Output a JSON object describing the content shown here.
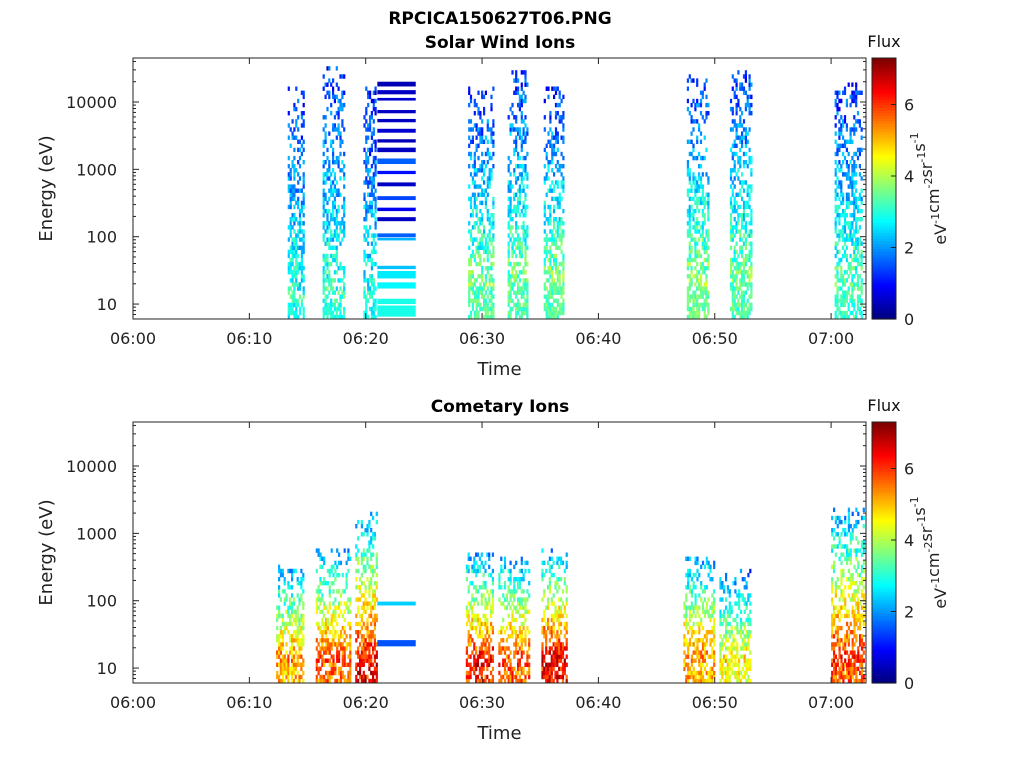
{
  "figure": {
    "title": "RPCICA150627T06.PNG"
  },
  "colorbar": {
    "title": "Flux",
    "unit_prefix": "eV",
    "unit_parts": [
      {
        "t": "eV",
        "sup": "-1"
      },
      {
        "t": "cm",
        "sup": "-2"
      },
      {
        "t": "sr",
        "sup": "-1"
      },
      {
        "t": "s",
        "sup": "-1"
      }
    ],
    "ticks": [
      0,
      2,
      4,
      6
    ],
    "range": [
      0,
      7.3
    ],
    "colormap": "jet"
  },
  "chart_data": [
    {
      "type": "heatmap",
      "title": "Solar Wind Ions",
      "xlabel": "Time",
      "ylabel": "Energy (eV)",
      "x_ticks": [
        "06:00",
        "06:10",
        "06:20",
        "06:30",
        "06:40",
        "06:50",
        "07:00"
      ],
      "x_tick_minutes": [
        0,
        10,
        20,
        30,
        40,
        50,
        60
      ],
      "xlim_minutes": [
        0,
        63
      ],
      "y_scale": "log",
      "y_ticks": [
        10,
        100,
        1000,
        10000
      ],
      "ylim": [
        6,
        45000
      ],
      "z_label": "Flux",
      "zlim": [
        0,
        7.3
      ],
      "bursts": [
        {
          "start": 13.3,
          "end": 14.6,
          "emax": 16000,
          "emin": 6,
          "peak_e": 11,
          "peak_z": 3.0,
          "hi_z": 1.2
        },
        {
          "start": 16.3,
          "end": 18.2,
          "emax": 34000,
          "emin": 6,
          "peak_e": 11,
          "peak_z": 3.2,
          "hi_z": 1.2
        },
        {
          "start": 19.8,
          "end": 20.9,
          "emax": 18000,
          "emin": 6,
          "peak_e": 11,
          "peak_z": 3.0,
          "hi_z": 1.0
        },
        {
          "start": 28.8,
          "end": 30.9,
          "emax": 16000,
          "emin": 6,
          "peak_e": 18,
          "peak_z": 3.6,
          "hi_z": 1.2
        },
        {
          "start": 32.2,
          "end": 33.9,
          "emax": 30000,
          "emin": 6,
          "peak_e": 20,
          "peak_z": 3.6,
          "hi_z": 1.2
        },
        {
          "start": 35.3,
          "end": 37.0,
          "emax": 16000,
          "emin": 6,
          "peak_e": 20,
          "peak_z": 3.7,
          "hi_z": 1.2
        },
        {
          "start": 47.6,
          "end": 49.5,
          "emax": 25000,
          "emin": 6,
          "peak_e": 18,
          "peak_z": 3.8,
          "hi_z": 1.2
        },
        {
          "start": 51.3,
          "end": 53.2,
          "emax": 30000,
          "emin": 6,
          "peak_e": 20,
          "peak_z": 3.6,
          "hi_z": 1.2
        },
        {
          "start": 60.3,
          "end": 62.6,
          "emax": 20000,
          "emin": 6,
          "peak_e": 15,
          "peak_z": 3.4,
          "hi_z": 1.2
        }
      ],
      "bands": [
        {
          "start": 21.0,
          "end": 24.3,
          "e_low": 17000,
          "e_high": 20000,
          "z": 0.4
        },
        {
          "start": 21.0,
          "end": 24.3,
          "e_low": 13000,
          "e_high": 15000,
          "z": 0.5
        },
        {
          "start": 21.0,
          "end": 24.3,
          "e_low": 10500,
          "e_high": 11500,
          "z": 0.6
        },
        {
          "start": 21.0,
          "end": 24.3,
          "e_low": 6800,
          "e_high": 7600,
          "z": 0.5
        },
        {
          "start": 21.0,
          "end": 24.3,
          "e_low": 5000,
          "e_high": 5600,
          "z": 0.5
        },
        {
          "start": 21.0,
          "end": 24.3,
          "e_low": 3500,
          "e_high": 4000,
          "z": 0.6
        },
        {
          "start": 21.0,
          "end": 24.3,
          "e_low": 2500,
          "e_high": 2800,
          "z": 0.4
        },
        {
          "start": 21.0,
          "end": 24.3,
          "e_low": 1800,
          "e_high": 2100,
          "z": 0.5
        },
        {
          "start": 21.0,
          "end": 24.3,
          "e_low": 1200,
          "e_high": 1450,
          "z": 1.6
        },
        {
          "start": 21.0,
          "end": 24.3,
          "e_low": 850,
          "e_high": 950,
          "z": 1.0
        },
        {
          "start": 21.0,
          "end": 24.3,
          "e_low": 560,
          "e_high": 640,
          "z": 0.5
        },
        {
          "start": 21.0,
          "end": 24.3,
          "e_low": 350,
          "e_high": 400,
          "z": 1.4
        },
        {
          "start": 21.0,
          "end": 24.3,
          "e_low": 240,
          "e_high": 270,
          "z": 0.8
        },
        {
          "start": 21.0,
          "end": 24.3,
          "e_low": 170,
          "e_high": 195,
          "z": 0.5
        },
        {
          "start": 21.0,
          "end": 24.3,
          "e_low": 98,
          "e_high": 112,
          "z": 1.6
        },
        {
          "start": 21.0,
          "end": 24.3,
          "e_low": 88,
          "e_high": 96,
          "z": 2.2
        },
        {
          "start": 21.0,
          "end": 24.3,
          "e_low": 33,
          "e_high": 37,
          "z": 2.3
        },
        {
          "start": 21.0,
          "end": 24.3,
          "e_low": 24,
          "e_high": 31,
          "z": 2.6
        },
        {
          "start": 21.0,
          "end": 24.3,
          "e_low": 17,
          "e_high": 21,
          "z": 2.7
        },
        {
          "start": 21.0,
          "end": 24.3,
          "e_low": 10,
          "e_high": 12,
          "z": 2.9
        },
        {
          "start": 21.0,
          "end": 24.3,
          "e_low": 6.5,
          "e_high": 9.5,
          "z": 2.9
        }
      ]
    },
    {
      "type": "heatmap",
      "title": "Cometary Ions",
      "xlabel": "Time",
      "ylabel": "Energy (eV)",
      "x_ticks": [
        "06:00",
        "06:10",
        "06:20",
        "06:30",
        "06:40",
        "06:50",
        "07:00"
      ],
      "x_tick_minutes": [
        0,
        10,
        20,
        30,
        40,
        50,
        60
      ],
      "xlim_minutes": [
        0,
        63
      ],
      "y_scale": "log",
      "y_ticks": [
        10,
        100,
        1000,
        10000
      ],
      "ylim": [
        6,
        45000
      ],
      "z_label": "Flux",
      "zlim": [
        0,
        7.3
      ],
      "bursts": [
        {
          "start": 12.3,
          "end": 14.6,
          "emax": 350,
          "emin": 6,
          "peak_e": 12,
          "peak_z": 5.5,
          "hi_z": 2.0
        },
        {
          "start": 15.7,
          "end": 18.6,
          "emax": 600,
          "emin": 6,
          "peak_e": 12,
          "peak_z": 6.0,
          "hi_z": 2.0
        },
        {
          "start": 19.1,
          "end": 20.9,
          "emax": 2000,
          "emin": 6,
          "peak_e": 8,
          "peak_z": 6.8,
          "hi_z": 2.0
        },
        {
          "start": 28.6,
          "end": 30.9,
          "emax": 500,
          "emin": 6,
          "peak_e": 10,
          "peak_z": 6.6,
          "hi_z": 2.0
        },
        {
          "start": 31.4,
          "end": 34.0,
          "emax": 450,
          "emin": 6,
          "peak_e": 10,
          "peak_z": 6.2,
          "hi_z": 2.0
        },
        {
          "start": 35.1,
          "end": 37.3,
          "emax": 600,
          "emin": 6,
          "peak_e": 10,
          "peak_z": 6.9,
          "hi_z": 2.0
        },
        {
          "start": 47.3,
          "end": 49.9,
          "emax": 450,
          "emin": 6,
          "peak_e": 12,
          "peak_z": 5.6,
          "hi_z": 2.0
        },
        {
          "start": 50.4,
          "end": 53.1,
          "emax": 300,
          "emin": 6,
          "peak_e": 12,
          "peak_z": 4.8,
          "hi_z": 1.6
        },
        {
          "start": 60.0,
          "end": 62.8,
          "emax": 2500,
          "emin": 6,
          "peak_e": 12,
          "peak_z": 6.2,
          "hi_z": 2.0
        }
      ],
      "bands": [
        {
          "start": 21.0,
          "end": 24.3,
          "e_low": 85,
          "e_high": 97,
          "z": 2.4
        },
        {
          "start": 21.0,
          "end": 24.3,
          "e_low": 21,
          "e_high": 26,
          "z": 1.5
        }
      ]
    }
  ]
}
